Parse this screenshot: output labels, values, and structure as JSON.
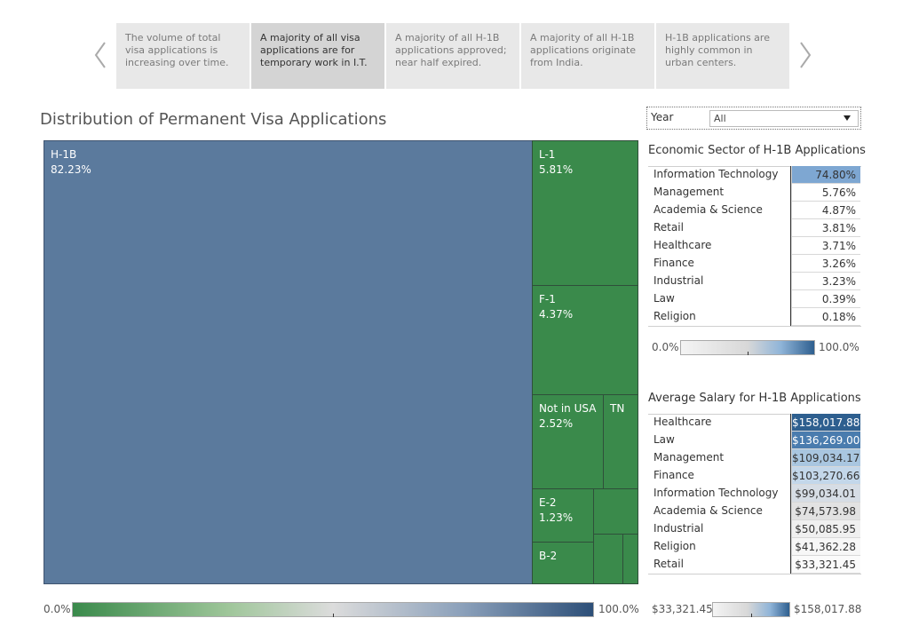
{
  "story": {
    "points": [
      "The volume of total visa applications is increasing over time.",
      "A majority of all visa applications are for temporary work in I.T.",
      "A majority of all H-1B applications approved; near half expired.",
      "A majority of all H-1B applications originate from India.",
      "H-1B applications are highly common in urban centers."
    ],
    "active_index": 1
  },
  "main_title": "Distribution of Permanent Visa Applications",
  "treemap": {
    "tiles": [
      {
        "name": "H-1B",
        "value": "82.23%",
        "color": "#5b7a9d"
      },
      {
        "name": "L-1",
        "value": "5.81%",
        "color": "#3a8a4b"
      },
      {
        "name": "F-1",
        "value": "4.37%",
        "color": "#3a8a4b"
      },
      {
        "name": "Not in USA",
        "value": "2.52%",
        "color": "#3a8a4b"
      },
      {
        "name": "TN",
        "value": "",
        "color": "#3a8a4b"
      },
      {
        "name": "E-2",
        "value": "1.23%",
        "color": "#3a8a4b"
      },
      {
        "name": "B-2",
        "value": "",
        "color": "#3a8a4b"
      }
    ]
  },
  "treemap_legend": {
    "min": "0.0%",
    "max": "100.0%",
    "color_low": "#3a8a4b",
    "color_high": "#2d4f78"
  },
  "year_filter": {
    "label": "Year",
    "selected": "All"
  },
  "sector": {
    "title": "Economic Sector of H-1B Applications",
    "rows": [
      {
        "label": "Information Technology",
        "value": "74.80%",
        "highlight": "#7ea7d2"
      },
      {
        "label": "Management",
        "value": "5.76%",
        "highlight": ""
      },
      {
        "label": "Academia & Science",
        "value": "4.87%",
        "highlight": ""
      },
      {
        "label": "Retail",
        "value": "3.81%",
        "highlight": ""
      },
      {
        "label": "Healthcare",
        "value": "3.71%",
        "highlight": ""
      },
      {
        "label": "Finance",
        "value": "3.26%",
        "highlight": ""
      },
      {
        "label": "Industrial",
        "value": "3.23%",
        "highlight": ""
      },
      {
        "label": "Law",
        "value": "0.39%",
        "highlight": ""
      },
      {
        "label": "Religion",
        "value": "0.18%",
        "highlight": ""
      }
    ],
    "legend": {
      "min": "0.0%",
      "max": "100.0%"
    }
  },
  "salary": {
    "title": "Average Salary for H-1B Applications",
    "rows": [
      {
        "label": "Healthcare",
        "value": "$158,017.88",
        "bg": "#2e5f8f",
        "fg": "#ffffff"
      },
      {
        "label": "Law",
        "value": "$136,269.00",
        "bg": "#4a7cae",
        "fg": "#ffffff"
      },
      {
        "label": "Management",
        "value": "$109,034.17",
        "bg": "#a9c6e0",
        "fg": "#333333"
      },
      {
        "label": "Finance",
        "value": "$103,270.66",
        "bg": "#c3d7ea",
        "fg": "#333333"
      },
      {
        "label": "Information Technology",
        "value": "$99,034.01",
        "bg": "#d6dde5",
        "fg": "#333333"
      },
      {
        "label": "Academia & Science",
        "value": "$74,573.98",
        "bg": "#e2e2e2",
        "fg": "#333333"
      },
      {
        "label": "Industrial",
        "value": "$50,085.95",
        "bg": "#f0f0f0",
        "fg": "#333333"
      },
      {
        "label": "Religion",
        "value": "$41,362.28",
        "bg": "#f7f7f7",
        "fg": "#333333"
      },
      {
        "label": "Retail",
        "value": "$33,321.45",
        "bg": "#fbfbfb",
        "fg": "#333333"
      }
    ],
    "legend": {
      "min": "$33,321.45",
      "max": "$158,017.88"
    }
  }
}
